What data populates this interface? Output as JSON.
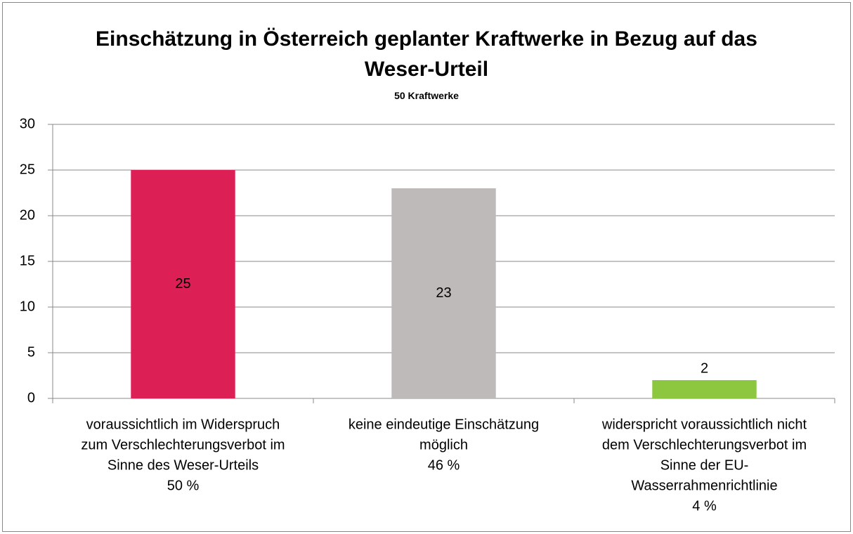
{
  "chart_data": {
    "type": "bar",
    "title": "Einschätzung in Österreich geplanter Kraftwerke in Bezug auf das Weser-Urteil",
    "subtitle": "50 Kraftwerke",
    "categories": [
      [
        "voraussichtlich im Widerspruch",
        "zum Verschlechterungsverbot im",
        "Sinne des Weser-Urteils",
        "50 %"
      ],
      [
        "keine eindeutige Einschätzung",
        "möglich",
        "46 %"
      ],
      [
        "widerspricht voraussichtlich nicht",
        "dem Verschlechterungsverbot im",
        "Sinne der EU-",
        "Wasserrahmenrichtlinie",
        "4 %"
      ]
    ],
    "values": [
      25,
      23,
      2
    ],
    "colors": [
      "#dc1f55",
      "#bfbaba",
      "#8dc63f"
    ],
    "ylim": [
      0,
      30
    ],
    "yticks": [
      0,
      5,
      10,
      15,
      20,
      25,
      30
    ],
    "grid": true
  }
}
